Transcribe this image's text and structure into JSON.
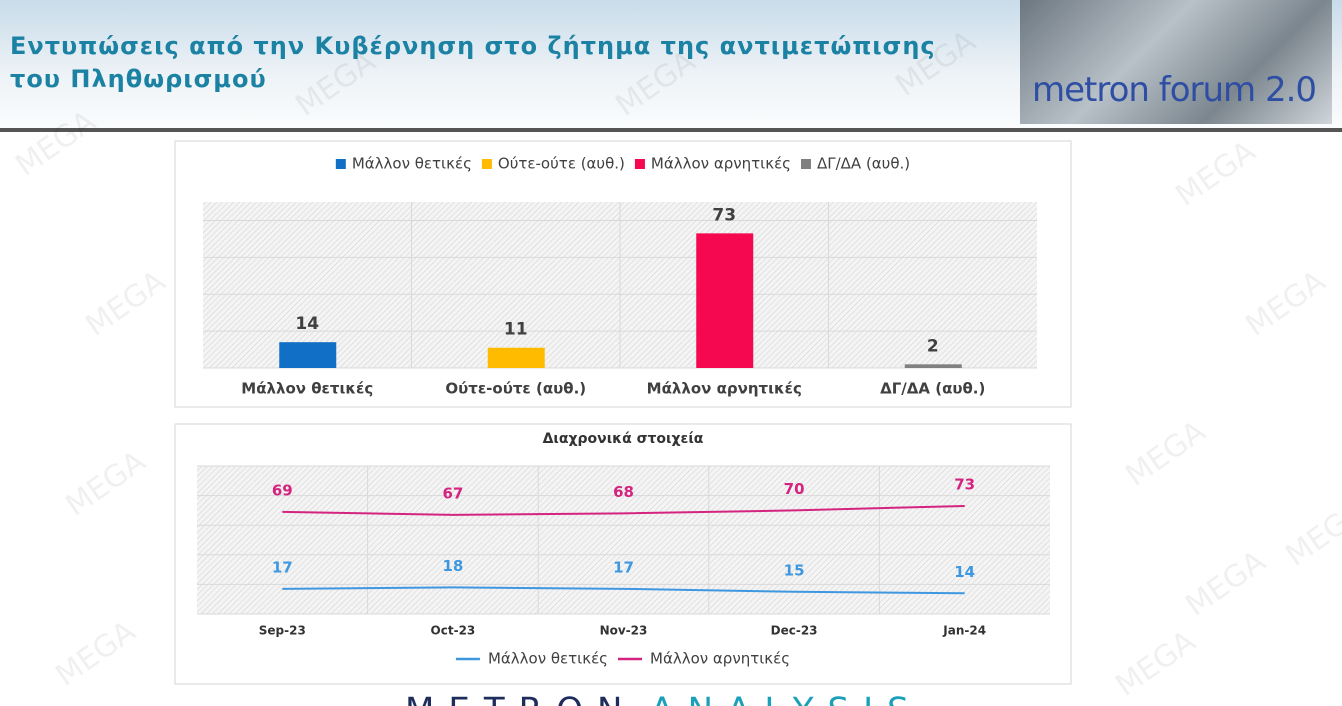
{
  "header": {
    "title": "Εντυπώσεις από την Κυβέρνηση στο ζήτημα της αντιμετώπισης του Πληθωρισμού",
    "logo": "metron forum 2.0"
  },
  "watermark": "MEGA",
  "footer": {
    "brand_left": "METRON",
    "brand_right": "ANALYSIS"
  },
  "chart_data": [
    {
      "type": "bar",
      "categories": [
        "Μάλλον θετικές",
        "Ούτε-ούτε (αυθ.)",
        "Μάλλον αρνητικές",
        "ΔΓ/ΔΑ (αυθ.)"
      ],
      "values": [
        14,
        11,
        73,
        2
      ],
      "colors": [
        "#1170c6",
        "#ffbb00",
        "#f5084f",
        "#808080"
      ],
      "ylim": [
        0,
        90
      ],
      "yticks": [
        0,
        20,
        40,
        60,
        80
      ],
      "show_ytick_labels": false,
      "grid": true,
      "legend": "top"
    },
    {
      "type": "line",
      "title": "Διαχρονικά στοιχεία",
      "categories": [
        "Sep-23",
        "Oct-23",
        "Nov-23",
        "Dec-23",
        "Jan-24"
      ],
      "series": [
        {
          "name": "Μάλλον θετικές",
          "color": "#3f97e0",
          "values": [
            17,
            18,
            17,
            15,
            14
          ]
        },
        {
          "name": "Μάλλον αρνητικές",
          "color": "#d4247f",
          "values": [
            69,
            67,
            68,
            70,
            73
          ]
        }
      ],
      "ylim": [
        0,
        100
      ],
      "yticks": [
        0,
        20,
        40,
        60,
        80,
        100
      ],
      "show_ytick_labels": false,
      "grid": true,
      "legend": "bottom"
    }
  ]
}
